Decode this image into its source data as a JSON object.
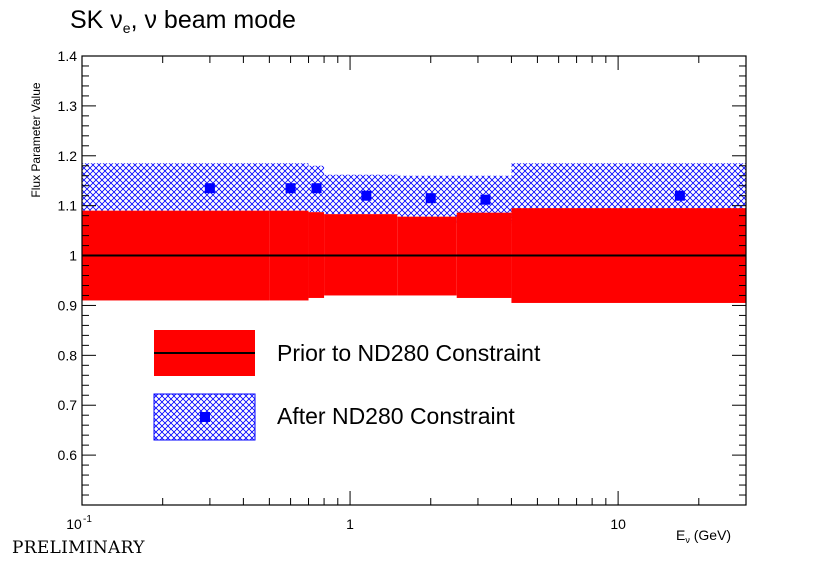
{
  "title": {
    "prefix": "SK ",
    "nu": "ν",
    "flavor_sub": "e",
    "suffix": ", ν beam mode"
  },
  "footer": {
    "preliminary": "PRELIMINARY"
  },
  "colors": {
    "prior": "#ff0000",
    "after": "#0000ff",
    "axis": "#000000"
  },
  "chart_data": {
    "type": "bar",
    "title": "SK νe, ν beam mode",
    "xlabel": "Eν (GeV)",
    "ylabel": "Flux Parameter Value",
    "xscale": "log",
    "xlim": [
      0.1,
      30
    ],
    "ylim": [
      0.5,
      1.4
    ],
    "y_ticks": [
      "0.6",
      "0.7",
      "0.8",
      "0.9",
      "1",
      "1.1",
      "1.2",
      "1.3",
      "1.4"
    ],
    "x_ticks": [
      {
        "value": 0.1,
        "base": "10",
        "exp": "-1"
      },
      {
        "value": 1,
        "label": "1"
      },
      {
        "value": 10,
        "label": "10"
      }
    ],
    "central_value": 1.0,
    "bins": [
      0.1,
      0.5,
      0.7,
      0.8,
      1.5,
      2.5,
      4.0,
      30.0
    ],
    "prior": {
      "name": "Prior to ND280 Constraint",
      "lower": [
        0.91,
        0.91,
        0.915,
        0.92,
        0.92,
        0.915,
        0.905
      ],
      "upper": [
        1.09,
        1.09,
        1.087,
        1.083,
        1.078,
        1.086,
        1.095
      ]
    },
    "after": {
      "name": "After ND280 Constraint",
      "points_x": [
        0.3,
        0.6,
        0.75,
        1.15,
        2.0,
        3.2,
        17.0
      ],
      "values": [
        1.135,
        1.135,
        1.135,
        1.12,
        1.115,
        1.112,
        1.12
      ],
      "lower": [
        1.09,
        1.09,
        1.087,
        1.083,
        1.078,
        1.065,
        1.055
      ],
      "upper": [
        1.185,
        1.185,
        1.18,
        1.162,
        1.16,
        1.16,
        1.185
      ]
    },
    "legend": [
      {
        "label": "Prior to ND280 Constraint",
        "style": "filled-red-with-line"
      },
      {
        "label": "After ND280 Constraint",
        "style": "blue-crosshatch-with-marker"
      }
    ],
    "legend_position": "lower-left",
    "grid": false
  }
}
